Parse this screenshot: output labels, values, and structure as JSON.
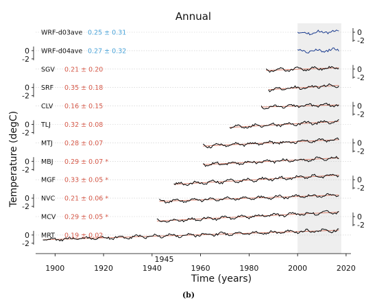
{
  "chart_data": {
    "type": "line",
    "title": "Annual",
    "xlabel": "Time (years)",
    "ylabel": "Temperature (degC)",
    "xlim": [
      1892,
      2022
    ],
    "xticks": [
      1900,
      1920,
      1940,
      1960,
      1980,
      2000,
      2020
    ],
    "extra_xtick": "1945",
    "shaded_span": [
      2000,
      2018
    ],
    "offset_axis_ticks": [
      "0",
      "-2"
    ],
    "caption": "(b)",
    "colors": {
      "series": "#000000",
      "trendline": "#d9816d",
      "trend_significant": "#d65a4a",
      "trend_model": "#4aa3d8",
      "shade": "#eeeeee",
      "grid": "#c8c8c8"
    },
    "series": [
      {
        "name": "WRF-d03ave",
        "trend": "0.25 ± 0.31",
        "trend_type": "model",
        "start": 2000,
        "end": 2017
      },
      {
        "name": "WRF-d04ave",
        "trend": "0.27 ± 0.32",
        "trend_type": "model",
        "start": 2000,
        "end": 2017
      },
      {
        "name": "SGV",
        "trend": "0.21 ± 0.20",
        "trend_type": "obs",
        "start": 1987,
        "end": 2017
      },
      {
        "name": "SRF",
        "trend": "0.35 ± 0.18",
        "trend_type": "obs",
        "start": 1988,
        "end": 2017
      },
      {
        "name": "CLV",
        "trend": "0.16 ± 0.15",
        "trend_type": "obs",
        "start": 1985,
        "end": 2017
      },
      {
        "name": "TLJ",
        "trend": "0.32 ± 0.08",
        "trend_type": "obs",
        "start": 1972,
        "end": 2017
      },
      {
        "name": "MTJ",
        "trend": "0.28 ± 0.07",
        "trend_type": "obs",
        "start": 1961,
        "end": 2017
      },
      {
        "name": "MBJ",
        "trend": "0.29 ± 0.07 *",
        "trend_type": "obs",
        "start": 1961,
        "end": 2017
      },
      {
        "name": "MGF",
        "trend": "0.33 ± 0.05 *",
        "trend_type": "obs",
        "start": 1949,
        "end": 2017
      },
      {
        "name": "NVC",
        "trend": "0.21 ± 0.06 *",
        "trend_type": "obs",
        "start": 1943,
        "end": 2017
      },
      {
        "name": "MCV",
        "trend": "0.29 ± 0.05 *",
        "trend_type": "obs",
        "start": 1942,
        "end": 2017
      },
      {
        "name": "MRT",
        "trend": "0.19 ± 0.02",
        "trend_type": "obs",
        "start": 1895,
        "end": 2017
      }
    ]
  }
}
